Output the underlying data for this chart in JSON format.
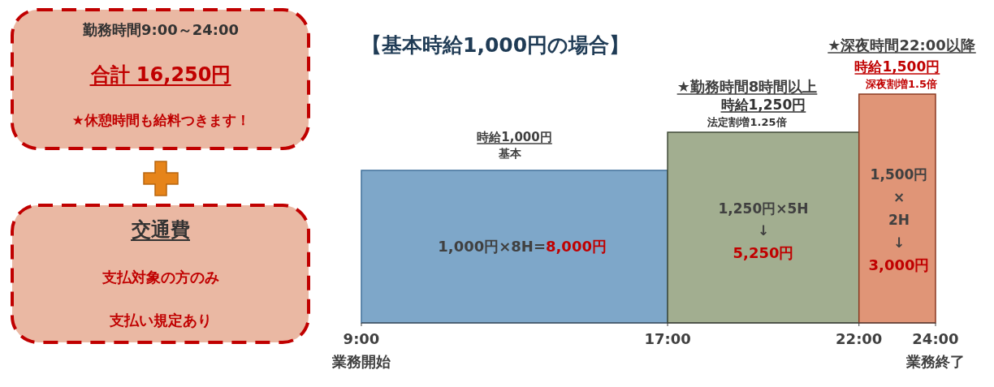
{
  "chart_data": [
    {
      "type": "other",
      "annotations": [
        "勤務時間9:00～24:00",
        "合計 16,250円",
        "★休憩時間も給料つきます！",
        "交通費",
        "支払対象の方のみ",
        "支払い規定あり"
      ]
    },
    {
      "type": "bar",
      "title": "【基本時給1,000円の場合】",
      "x": [
        13,
        19.5,
        23
      ],
      "values": [
        1000,
        1250,
        1500
      ],
      "colors": [
        "#7ea7c9",
        "#a2ae90",
        "#e09577"
      ],
      "value_labels": [
        "時給1,000円",
        "時給1,250円",
        "時給1,500円"
      ],
      "xlim": [
        9,
        24
      ],
      "xticks": [
        {
          "value": 9,
          "label": "9:00"
        },
        {
          "value": 17,
          "label": "17:00"
        },
        {
          "value": 22,
          "label": "22:00"
        },
        {
          "value": 24,
          "label": "24:00"
        }
      ],
      "tick_labels": "x",
      "annotations": [
        "基本",
        "★勤務時間8時間以上",
        "法定割増1.25倍",
        "★深夜時間22:00以降",
        "深夜割増1.5倍",
        "1,000円×8H=",
        "8,000円",
        "1,250円×5H",
        "↓",
        "5,250円",
        "1,500円",
        "×",
        "2H",
        "↓",
        "3,000円",
        "業務開始",
        "業務終了"
      ]
    }
  ]
}
